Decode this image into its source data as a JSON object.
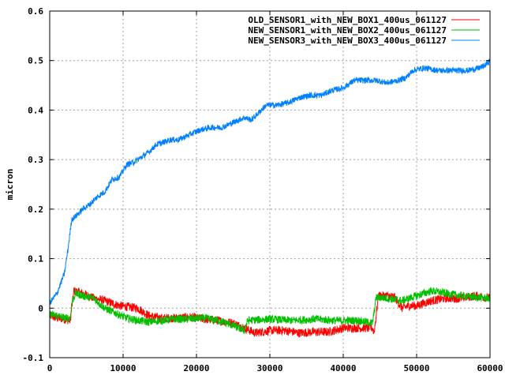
{
  "chart_data": {
    "type": "line",
    "title": "",
    "xlabel": "",
    "ylabel": "micron",
    "xlim": [
      0,
      60000
    ],
    "ylim": [
      -0.1,
      0.6
    ],
    "x_ticks": [
      0,
      10000,
      20000,
      30000,
      40000,
      50000,
      60000
    ],
    "y_ticks": [
      -0.1,
      0,
      0.1,
      0.2,
      0.3,
      0.4,
      0.5,
      0.6
    ],
    "x_tick_labels": [
      "0",
      "10000",
      "20000",
      "30000",
      "40000",
      "50000",
      "60000"
    ],
    "y_tick_labels": [
      "-0.1",
      "0",
      "0.1",
      "0.2",
      "0.3",
      "0.4",
      "0.5",
      "0.6"
    ],
    "grid": true,
    "legend_position": "top-right",
    "series": [
      {
        "name": "OLD_SENSOR1_with_NEW_BOX1_400us_061127",
        "color": "#ff0000",
        "noise": 0.009,
        "x": [
          0,
          1000,
          2000,
          2800,
          3000,
          3300,
          4500,
          6000,
          7500,
          8500,
          9500,
          10500,
          12000,
          13500,
          15000,
          17000,
          19000,
          21000,
          23000,
          25000,
          26500,
          28000,
          30000,
          32000,
          34000,
          36000,
          38000,
          40000,
          42000,
          44000,
          44200,
          44800,
          46000,
          47000,
          48000,
          49000,
          50000,
          52000,
          54000,
          56000,
          58000,
          60000
        ],
        "y": [
          -0.015,
          -0.02,
          -0.022,
          -0.025,
          0.0,
          0.035,
          0.03,
          0.02,
          0.015,
          0.01,
          0.005,
          0.003,
          0.0,
          -0.015,
          -0.02,
          -0.02,
          -0.018,
          -0.022,
          -0.025,
          -0.03,
          -0.04,
          -0.05,
          -0.045,
          -0.045,
          -0.05,
          -0.048,
          -0.048,
          -0.04,
          -0.04,
          -0.04,
          -0.05,
          0.025,
          0.025,
          0.022,
          0.0,
          0.005,
          0.005,
          0.015,
          0.02,
          0.02,
          0.025,
          0.02
        ]
      },
      {
        "name": "NEW_SENSOR1_with_NEW_BOX2_400us_061127",
        "color": "#00c000",
        "noise": 0.008,
        "x": [
          0,
          1000,
          2000,
          2800,
          3000,
          3500,
          4500,
          6000,
          7500,
          9000,
          10500,
          12000,
          13500,
          15000,
          17000,
          19000,
          21000,
          23000,
          25000,
          26500,
          27000,
          30000,
          33000,
          36000,
          39000,
          42000,
          44000,
          44500,
          46000,
          48000,
          50000,
          52000,
          54000,
          56000,
          58000,
          60000
        ],
        "y": [
          -0.012,
          -0.015,
          -0.02,
          -0.02,
          0.01,
          0.03,
          0.025,
          0.02,
          0.0,
          -0.01,
          -0.02,
          -0.025,
          -0.028,
          -0.025,
          -0.022,
          -0.022,
          -0.02,
          -0.025,
          -0.035,
          -0.045,
          -0.025,
          -0.022,
          -0.025,
          -0.022,
          -0.025,
          -0.025,
          -0.03,
          0.022,
          0.02,
          0.015,
          0.025,
          0.035,
          0.03,
          0.025,
          0.022,
          0.02
        ]
      },
      {
        "name": "NEW_SENSOR3_with_NEW_BOX3_400us_061127",
        "color": "#0080ff",
        "noise": 0.006,
        "x": [
          0,
          1000,
          2000,
          2500,
          3000,
          3500,
          4500,
          5500,
          6500,
          7500,
          8500,
          9500,
          10500,
          11500,
          12500,
          13500,
          14500,
          15500,
          16500,
          17500,
          19000,
          20500,
          22000,
          23500,
          25000,
          26500,
          27500,
          28500,
          29500,
          31000,
          32500,
          34000,
          35500,
          37000,
          38500,
          40000,
          41500,
          43000,
          44500,
          46000,
          47500,
          48500,
          49500,
          51000,
          53000,
          55000,
          57000,
          58500,
          59300,
          60000
        ],
        "y": [
          0.01,
          0.03,
          0.07,
          0.12,
          0.18,
          0.185,
          0.2,
          0.21,
          0.225,
          0.235,
          0.26,
          0.265,
          0.29,
          0.295,
          0.305,
          0.315,
          0.33,
          0.335,
          0.34,
          0.34,
          0.35,
          0.36,
          0.365,
          0.365,
          0.375,
          0.385,
          0.38,
          0.395,
          0.41,
          0.41,
          0.415,
          0.425,
          0.43,
          0.43,
          0.44,
          0.445,
          0.46,
          0.46,
          0.46,
          0.455,
          0.46,
          0.465,
          0.48,
          0.485,
          0.48,
          0.48,
          0.48,
          0.485,
          0.49,
          0.5
        ]
      }
    ]
  }
}
